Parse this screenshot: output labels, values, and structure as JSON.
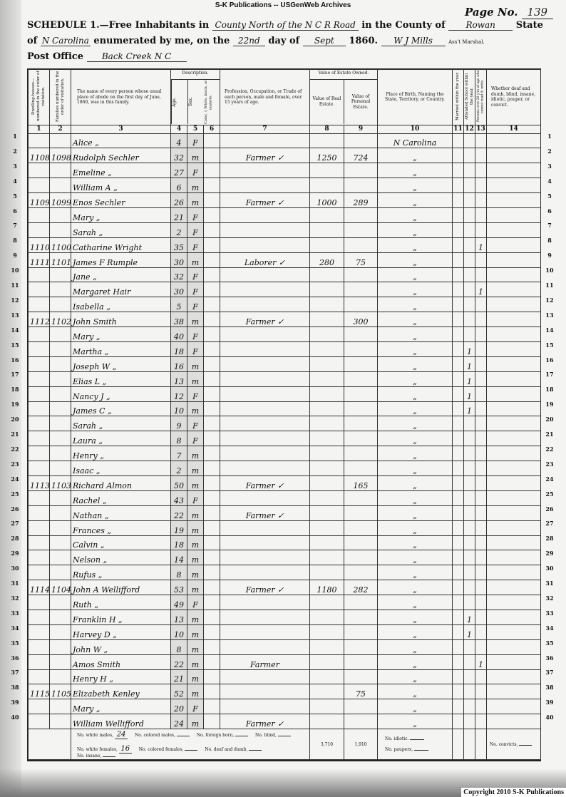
{
  "banner": "S-K Publications -- USGenWeb Archives",
  "page_no_label": "Page No.",
  "page_no": "139",
  "heading": {
    "schedule": "SCHEDULE 1.—Free Inhabitants in",
    "district": "County North of the N C R Road",
    "county_label": "in the County of",
    "county": "Rowan",
    "state_label": "State",
    "of_label": "of",
    "state": "N Carolina",
    "enumerated": "enumerated by me, on the",
    "day": "22nd",
    "day_of": "day of",
    "month": "Sept",
    "year": "1860.",
    "marshal": "W J Mills",
    "marshal_label": "Ass't Marshal.",
    "post_office_label": "Post Office",
    "post_office": "Back Creek N C"
  },
  "columns": {
    "c1": "Dwelling-houses—numbered in the order of visitation.",
    "c2": "Families numbered in the order of visitation.",
    "c3": "The name of every person whose usual place of abode on the first day of June, 1860, was in this family.",
    "description": "Description.",
    "c4": "Age.",
    "c5": "Sex.",
    "c6": "Color, { White, black, or mulatto.",
    "c7": "Profession, Occupation, or Trade of each person, male and female, over 15 years of age.",
    "estate": "Value of Estate Owned.",
    "c8": "Value of Real Estate.",
    "c9": "Value of Personal Estate.",
    "c10": "Place of Birth, Naming the State, Territory, or Country.",
    "c11": "Married within the year.",
    "c12": "Attended School within the year.",
    "c13": "Persons over 20 y'rs of age who cannot read & write.",
    "c14": "Whether deaf and dumb, blind, insane, idiotic, pauper, or convict.",
    "numbers": [
      "1",
      "2",
      "3",
      "4",
      "5",
      "6",
      "7",
      "8",
      "9",
      "10",
      "11",
      "12",
      "13",
      "14"
    ]
  },
  "rows": [
    {
      "line": "1",
      "dw": "",
      "fam": "",
      "name": "Alice „",
      "age": "4",
      "sex": "F",
      "color": "",
      "occ": "",
      "real": "",
      "pers": "",
      "birth": "N Carolina",
      "m": "",
      "s": "",
      "r": "",
      "d": ""
    },
    {
      "line": "2",
      "dw": "1108",
      "fam": "1098",
      "name": "Rudolph Sechler",
      "age": "32",
      "sex": "m",
      "color": "",
      "occ": "Farmer ✓",
      "real": "1250",
      "pers": "724",
      "birth": "„",
      "m": "",
      "s": "",
      "r": "",
      "d": ""
    },
    {
      "line": "3",
      "dw": "",
      "fam": "",
      "name": "Emeline „",
      "age": "27",
      "sex": "F",
      "color": "",
      "occ": "",
      "real": "",
      "pers": "",
      "birth": "„",
      "m": "",
      "s": "",
      "r": "",
      "d": ""
    },
    {
      "line": "4",
      "dw": "",
      "fam": "",
      "name": "William A „",
      "age": "6",
      "sex": "m",
      "color": "",
      "occ": "",
      "real": "",
      "pers": "",
      "birth": "„",
      "m": "",
      "s": "",
      "r": "",
      "d": ""
    },
    {
      "line": "5",
      "dw": "1109",
      "fam": "1099",
      "name": "Enos Sechler",
      "age": "26",
      "sex": "m",
      "color": "",
      "occ": "Farmer ✓",
      "real": "1000",
      "pers": "289",
      "birth": "„",
      "m": "",
      "s": "",
      "r": "",
      "d": ""
    },
    {
      "line": "6",
      "dw": "",
      "fam": "",
      "name": "Mary „",
      "age": "21",
      "sex": "F",
      "color": "",
      "occ": "",
      "real": "",
      "pers": "",
      "birth": "„",
      "m": "",
      "s": "",
      "r": "",
      "d": ""
    },
    {
      "line": "7",
      "dw": "",
      "fam": "",
      "name": "Sarah „",
      "age": "2",
      "sex": "F",
      "color": "",
      "occ": "",
      "real": "",
      "pers": "",
      "birth": "„",
      "m": "",
      "s": "",
      "r": "",
      "d": ""
    },
    {
      "line": "8",
      "dw": "1110",
      "fam": "1100",
      "name": "Catharine Wright",
      "age": "35",
      "sex": "F",
      "color": "",
      "occ": "",
      "real": "",
      "pers": "",
      "birth": "„",
      "m": "",
      "s": "",
      "r": "1",
      "d": ""
    },
    {
      "line": "9",
      "dw": "1111",
      "fam": "1101",
      "name": "James F Rumple",
      "age": "30",
      "sex": "m",
      "color": "",
      "occ": "Laborer ✓",
      "real": "280",
      "pers": "75",
      "birth": "„",
      "m": "",
      "s": "",
      "r": "",
      "d": ""
    },
    {
      "line": "10",
      "dw": "",
      "fam": "",
      "name": "Jane „",
      "age": "32",
      "sex": "F",
      "color": "",
      "occ": "",
      "real": "",
      "pers": "",
      "birth": "„",
      "m": "",
      "s": "",
      "r": "",
      "d": ""
    },
    {
      "line": "11",
      "dw": "",
      "fam": "",
      "name": "Margaret Hair",
      "age": "30",
      "sex": "F",
      "color": "",
      "occ": "",
      "real": "",
      "pers": "",
      "birth": "„",
      "m": "",
      "s": "",
      "r": "1",
      "d": ""
    },
    {
      "line": "12",
      "dw": "",
      "fam": "",
      "name": "Isabella „",
      "age": "5",
      "sex": "F",
      "color": "",
      "occ": "",
      "real": "",
      "pers": "",
      "birth": "„",
      "m": "",
      "s": "",
      "r": "",
      "d": ""
    },
    {
      "line": "13",
      "dw": "1112",
      "fam": "1102",
      "name": "John Smith",
      "age": "38",
      "sex": "m",
      "color": "",
      "occ": "Farmer ✓",
      "real": "",
      "pers": "300",
      "birth": "„",
      "m": "",
      "s": "",
      "r": "",
      "d": ""
    },
    {
      "line": "14",
      "dw": "",
      "fam": "",
      "name": "Mary „",
      "age": "40",
      "sex": "F",
      "color": "",
      "occ": "",
      "real": "",
      "pers": "",
      "birth": "„",
      "m": "",
      "s": "",
      "r": "",
      "d": ""
    },
    {
      "line": "15",
      "dw": "",
      "fam": "",
      "name": "Martha „",
      "age": "18",
      "sex": "F",
      "color": "",
      "occ": "",
      "real": "",
      "pers": "",
      "birth": "„",
      "m": "",
      "s": "1",
      "r": "",
      "d": ""
    },
    {
      "line": "16",
      "dw": "",
      "fam": "",
      "name": "Joseph W „",
      "age": "16",
      "sex": "m",
      "color": "",
      "occ": "",
      "real": "",
      "pers": "",
      "birth": "„",
      "m": "",
      "s": "1",
      "r": "",
      "d": ""
    },
    {
      "line": "17",
      "dw": "",
      "fam": "",
      "name": "Elias L „",
      "age": "13",
      "sex": "m",
      "color": "",
      "occ": "",
      "real": "",
      "pers": "",
      "birth": "„",
      "m": "",
      "s": "1",
      "r": "",
      "d": ""
    },
    {
      "line": "18",
      "dw": "",
      "fam": "",
      "name": "Nancy J „",
      "age": "12",
      "sex": "F",
      "color": "",
      "occ": "",
      "real": "",
      "pers": "",
      "birth": "„",
      "m": "",
      "s": "1",
      "r": "",
      "d": ""
    },
    {
      "line": "19",
      "dw": "",
      "fam": "",
      "name": "James C „",
      "age": "10",
      "sex": "m",
      "color": "",
      "occ": "",
      "real": "",
      "pers": "",
      "birth": "„",
      "m": "",
      "s": "1",
      "r": "",
      "d": ""
    },
    {
      "line": "20",
      "dw": "",
      "fam": "",
      "name": "Sarah „",
      "age": "9",
      "sex": "F",
      "color": "",
      "occ": "",
      "real": "",
      "pers": "",
      "birth": "„",
      "m": "",
      "s": "",
      "r": "",
      "d": ""
    },
    {
      "line": "21",
      "dw": "",
      "fam": "",
      "name": "Laura „",
      "age": "8",
      "sex": "F",
      "color": "",
      "occ": "",
      "real": "",
      "pers": "",
      "birth": "„",
      "m": "",
      "s": "",
      "r": "",
      "d": ""
    },
    {
      "line": "22",
      "dw": "",
      "fam": "",
      "name": "Henry „",
      "age": "7",
      "sex": "m",
      "color": "",
      "occ": "",
      "real": "",
      "pers": "",
      "birth": "„",
      "m": "",
      "s": "",
      "r": "",
      "d": ""
    },
    {
      "line": "23",
      "dw": "",
      "fam": "",
      "name": "Isaac „",
      "age": "2",
      "sex": "m",
      "color": "",
      "occ": "",
      "real": "",
      "pers": "",
      "birth": "„",
      "m": "",
      "s": "",
      "r": "",
      "d": ""
    },
    {
      "line": "24",
      "dw": "1113",
      "fam": "1103",
      "name": "Richard Almon",
      "age": "50",
      "sex": "m",
      "color": "",
      "occ": "Farmer ✓",
      "real": "",
      "pers": "165",
      "birth": "„",
      "m": "",
      "s": "",
      "r": "",
      "d": ""
    },
    {
      "line": "25",
      "dw": "",
      "fam": "",
      "name": "Rachel „",
      "age": "43",
      "sex": "F",
      "color": "",
      "occ": "",
      "real": "",
      "pers": "",
      "birth": "„",
      "m": "",
      "s": "",
      "r": "",
      "d": ""
    },
    {
      "line": "26",
      "dw": "",
      "fam": "",
      "name": "Nathan „",
      "age": "22",
      "sex": "m",
      "color": "",
      "occ": "Farmer ✓",
      "real": "",
      "pers": "",
      "birth": "„",
      "m": "",
      "s": "",
      "r": "",
      "d": ""
    },
    {
      "line": "27",
      "dw": "",
      "fam": "",
      "name": "Frances „",
      "age": "19",
      "sex": "m",
      "color": "",
      "occ": "",
      "real": "",
      "pers": "",
      "birth": "„",
      "m": "",
      "s": "",
      "r": "",
      "d": ""
    },
    {
      "line": "28",
      "dw": "",
      "fam": "",
      "name": "Calvin „",
      "age": "18",
      "sex": "m",
      "color": "",
      "occ": "",
      "real": "",
      "pers": "",
      "birth": "„",
      "m": "",
      "s": "",
      "r": "",
      "d": ""
    },
    {
      "line": "29",
      "dw": "",
      "fam": "",
      "name": "Nelson „",
      "age": "14",
      "sex": "m",
      "color": "",
      "occ": "",
      "real": "",
      "pers": "",
      "birth": "„",
      "m": "",
      "s": "",
      "r": "",
      "d": ""
    },
    {
      "line": "30",
      "dw": "",
      "fam": "",
      "name": "Rufus „",
      "age": "8",
      "sex": "m",
      "color": "",
      "occ": "",
      "real": "",
      "pers": "",
      "birth": "„",
      "m": "",
      "s": "",
      "r": "",
      "d": ""
    },
    {
      "line": "31",
      "dw": "1114",
      "fam": "1104",
      "name": "John A Wellifford",
      "age": "53",
      "sex": "m",
      "color": "",
      "occ": "Farmer ✓",
      "real": "1180",
      "pers": "282",
      "birth": "„",
      "m": "",
      "s": "",
      "r": "",
      "d": ""
    },
    {
      "line": "32",
      "dw": "",
      "fam": "",
      "name": "Ruth „",
      "age": "49",
      "sex": "F",
      "color": "",
      "occ": "",
      "real": "",
      "pers": "",
      "birth": "„",
      "m": "",
      "s": "",
      "r": "",
      "d": ""
    },
    {
      "line": "33",
      "dw": "",
      "fam": "",
      "name": "Franklin H „",
      "age": "13",
      "sex": "m",
      "color": "",
      "occ": "",
      "real": "",
      "pers": "",
      "birth": "„",
      "m": "",
      "s": "1",
      "r": "",
      "d": ""
    },
    {
      "line": "34",
      "dw": "",
      "fam": "",
      "name": "Harvey D „",
      "age": "10",
      "sex": "m",
      "color": "",
      "occ": "",
      "real": "",
      "pers": "",
      "birth": "„",
      "m": "",
      "s": "1",
      "r": "",
      "d": ""
    },
    {
      "line": "35",
      "dw": "",
      "fam": "",
      "name": "John W „",
      "age": "8",
      "sex": "m",
      "color": "",
      "occ": "",
      "real": "",
      "pers": "",
      "birth": "„",
      "m": "",
      "s": "",
      "r": "",
      "d": ""
    },
    {
      "line": "36",
      "dw": "",
      "fam": "",
      "name": "Amos Smith",
      "age": "22",
      "sex": "m",
      "color": "",
      "occ": "Farmer",
      "real": "",
      "pers": "",
      "birth": "„",
      "m": "",
      "s": "",
      "r": "1",
      "d": ""
    },
    {
      "line": "37",
      "dw": "",
      "fam": "",
      "name": "Henry H „",
      "age": "21",
      "sex": "m",
      "color": "",
      "occ": "",
      "real": "",
      "pers": "",
      "birth": "„",
      "m": "",
      "s": "",
      "r": "",
      "d": ""
    },
    {
      "line": "38",
      "dw": "1115",
      "fam": "1105",
      "name": "Elizabeth Kenley",
      "age": "52",
      "sex": "m",
      "color": "",
      "occ": "",
      "real": "",
      "pers": "75",
      "birth": "„",
      "m": "",
      "s": "",
      "r": "",
      "d": ""
    },
    {
      "line": "39",
      "dw": "",
      "fam": "",
      "name": "Mary „",
      "age": "20",
      "sex": "F",
      "color": "",
      "occ": "",
      "real": "",
      "pers": "",
      "birth": "„",
      "m": "",
      "s": "",
      "r": "",
      "d": ""
    },
    {
      "line": "40",
      "dw": "",
      "fam": "",
      "name": "William Wellifford",
      "age": "24",
      "sex": "m",
      "color": "",
      "occ": "Farmer ✓",
      "real": "",
      "pers": "",
      "birth": "„",
      "m": "",
      "s": "",
      "r": "",
      "d": ""
    }
  ],
  "footer": {
    "white_males_label": "No. white males,",
    "white_males": "24",
    "white_females_label": "No. white females,",
    "white_females": "16",
    "colored_males_label": "No. colored males,",
    "colored_males": "",
    "colored_females_label": "No. colored females,",
    "colored_females": "",
    "foreign_born_label": "No. foreign born,",
    "foreign_born": "",
    "deaf_dumb_label": "No. deaf and dumb,",
    "deaf_dumb": "",
    "blind_label": "No. blind,",
    "blind": "",
    "insane_label": "No. insane,",
    "insane": "",
    "total_real": "3,710",
    "total_personal": "1,910",
    "idiotic_label": "No. idiotic.",
    "idiotic": "",
    "paupers_label": "No. paupers,",
    "paupers": "",
    "convicts_label": "No. convicts,",
    "convicts": ""
  },
  "copyright": "Copyright 2010 S-K Publications"
}
